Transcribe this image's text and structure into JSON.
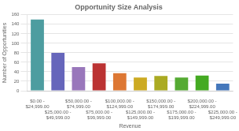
{
  "chart_data": {
    "type": "bar",
    "title": "Opportunity Size Analysis",
    "xlabel": "Revenue",
    "ylabel": "Number of Opportunities",
    "categories": [
      "$0.00 - $24,999.00",
      "$25,000.00 - $49,999.00",
      "$50,000.00 - $74,999.00",
      "$75,000.00 - $99,999.00",
      "$100,000.00 - $124,999.00",
      "$125,000.00 - $149,999.00",
      "$150,000.00 - $174,999.00",
      "$175,000.00 - $199,999.00",
      "$200,000.00 - $224,999.00",
      "$225,000.00 - $249,999.00"
    ],
    "values": [
      150,
      80,
      50,
      58,
      37,
      28,
      31,
      28,
      32,
      15
    ],
    "colors": [
      "#4d9da0",
      "#6666bb",
      "#9977bb",
      "#bb3333",
      "#dd7733",
      "#ccaa22",
      "#aaaa22",
      "#55aa33",
      "#44aa22",
      "#4477bb"
    ],
    "ylim": [
      0,
      160
    ],
    "yticks": [
      0,
      20,
      40,
      60,
      80,
      100,
      120,
      140,
      160
    ],
    "grid": true
  }
}
